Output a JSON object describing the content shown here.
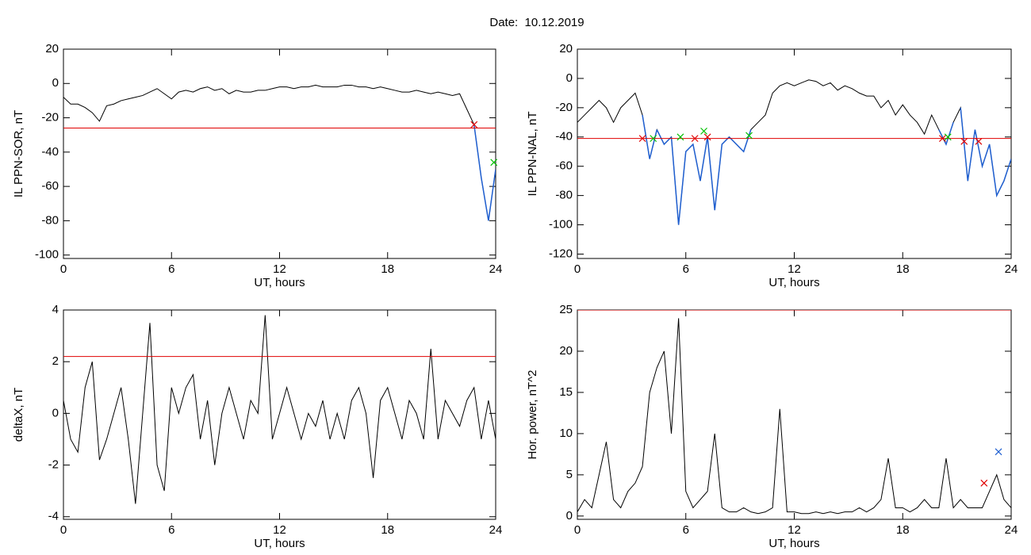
{
  "title": "Date:  10.12.2019",
  "chart_data": [
    {
      "type": "line",
      "ylabel": "IL PPN-SOR, nT",
      "xlabel": "UT, hours",
      "xlim": [
        0,
        24
      ],
      "xticks": [
        0,
        6,
        12,
        18,
        24
      ],
      "ylim": [
        -102,
        20
      ],
      "yticks": [
        -100,
        -80,
        -60,
        -40,
        -20,
        0,
        20
      ],
      "color": "#000000",
      "below_color": "#1f5fd0",
      "threshold": -26,
      "threshold_color": "#e00000",
      "x": [
        0,
        0.4,
        0.8,
        1.2,
        1.6,
        2,
        2.4,
        2.8,
        3.2,
        3.6,
        4,
        4.4,
        4.8,
        5.2,
        5.6,
        6,
        6.4,
        6.8,
        7.2,
        7.6,
        8,
        8.4,
        8.8,
        9.2,
        9.6,
        10,
        10.4,
        10.8,
        11.2,
        11.6,
        12,
        12.4,
        12.8,
        13.2,
        13.6,
        14,
        14.4,
        14.8,
        15.2,
        15.6,
        16,
        16.4,
        16.8,
        17.2,
        17.6,
        18,
        18.4,
        18.8,
        19.2,
        19.6,
        20,
        20.4,
        20.8,
        21.2,
        21.6,
        22,
        22.4,
        22.8,
        23.2,
        23.6,
        24
      ],
      "values": [
        -8,
        -12,
        -12,
        -14,
        -17,
        -22,
        -13,
        -12,
        -10,
        -9,
        -8,
        -7,
        -5,
        -3,
        -6,
        -9,
        -5,
        -4,
        -5,
        -3,
        -2,
        -4,
        -3,
        -6,
        -4,
        -5,
        -5,
        -4,
        -4,
        -3,
        -2,
        -2,
        -3,
        -2,
        -2,
        -1,
        -2,
        -2,
        -2,
        -1,
        -1,
        -2,
        -2,
        -3,
        -2,
        -3,
        -4,
        -5,
        -5,
        -4,
        -5,
        -6,
        -5,
        -6,
        -7,
        -6,
        -15,
        -24,
        -55,
        -80,
        -50
      ],
      "markers": [
        {
          "x": 22.8,
          "y": -24,
          "color": "#e00000"
        },
        {
          "x": 23.9,
          "y": -46,
          "color": "#00c000"
        }
      ]
    },
    {
      "type": "line",
      "ylabel": "IL PPN-NAL, nT",
      "xlabel": "UT, hours",
      "xlim": [
        0,
        24
      ],
      "xticks": [
        0,
        6,
        12,
        18,
        24
      ],
      "ylim": [
        -123,
        20
      ],
      "yticks": [
        -120,
        -100,
        -80,
        -60,
        -40,
        -20,
        0,
        20
      ],
      "color": "#000000",
      "below_color": "#1f5fd0",
      "threshold": -41,
      "threshold_color": "#e00000",
      "x": [
        0,
        0.4,
        0.8,
        1.2,
        1.6,
        2,
        2.4,
        2.8,
        3.2,
        3.6,
        4,
        4.4,
        4.8,
        5.2,
        5.6,
        6,
        6.4,
        6.8,
        7.2,
        7.6,
        8,
        8.4,
        8.8,
        9.2,
        9.6,
        10,
        10.4,
        10.8,
        11.2,
        11.6,
        12,
        12.4,
        12.8,
        13.2,
        13.6,
        14,
        14.4,
        14.8,
        15.2,
        15.6,
        16,
        16.4,
        16.8,
        17.2,
        17.6,
        18,
        18.4,
        18.8,
        19.2,
        19.6,
        20,
        20.4,
        20.8,
        21.2,
        21.6,
        22,
        22.4,
        22.8,
        23.2,
        23.6,
        24
      ],
      "values": [
        -30,
        -25,
        -20,
        -15,
        -20,
        -30,
        -20,
        -15,
        -10,
        -25,
        -55,
        -35,
        -45,
        -40,
        -100,
        -50,
        -45,
        -70,
        -40,
        -90,
        -45,
        -40,
        -45,
        -50,
        -35,
        -30,
        -25,
        -10,
        -5,
        -3,
        -5,
        -3,
        -1,
        -2,
        -5,
        -3,
        -8,
        -5,
        -7,
        -10,
        -12,
        -12,
        -20,
        -15,
        -25,
        -18,
        -25,
        -30,
        -38,
        -25,
        -35,
        -45,
        -30,
        -20,
        -70,
        -35,
        -60,
        -45,
        -80,
        -70,
        -55
      ],
      "markers": [
        {
          "x": 3.6,
          "y": -41,
          "color": "#e00000"
        },
        {
          "x": 6.5,
          "y": -41,
          "color": "#e00000"
        },
        {
          "x": 7.2,
          "y": -40,
          "color": "#e00000"
        },
        {
          "x": 20.2,
          "y": -41,
          "color": "#e00000"
        },
        {
          "x": 21.4,
          "y": -43,
          "color": "#e00000"
        },
        {
          "x": 22.2,
          "y": -43,
          "color": "#e00000"
        },
        {
          "x": 4.2,
          "y": -41,
          "color": "#00c000"
        },
        {
          "x": 5.7,
          "y": -40,
          "color": "#00c000"
        },
        {
          "x": 7.0,
          "y": -36,
          "color": "#00c000"
        },
        {
          "x": 9.5,
          "y": -39,
          "color": "#00c000"
        },
        {
          "x": 20.5,
          "y": -40,
          "color": "#00c000"
        }
      ]
    },
    {
      "type": "line",
      "ylabel": "deltaX, nT",
      "xlabel": "UT, hours",
      "xlim": [
        0,
        24
      ],
      "xticks": [
        0,
        6,
        12,
        18,
        24
      ],
      "ylim": [
        -4.1,
        4
      ],
      "yticks": [
        -4,
        -2,
        0,
        2,
        4
      ],
      "color": "#000000",
      "threshold": 2.2,
      "threshold_color": "#e00000",
      "x": [
        0,
        0.4,
        0.8,
        1.2,
        1.6,
        2,
        2.4,
        2.8,
        3.2,
        3.6,
        4,
        4.4,
        4.8,
        5.2,
        5.6,
        6,
        6.4,
        6.8,
        7.2,
        7.6,
        8,
        8.4,
        8.8,
        9.2,
        9.6,
        10,
        10.4,
        10.8,
        11.2,
        11.6,
        12,
        12.4,
        12.8,
        13.2,
        13.6,
        14,
        14.4,
        14.8,
        15.2,
        15.6,
        16,
        16.4,
        16.8,
        17.2,
        17.6,
        18,
        18.4,
        18.8,
        19.2,
        19.6,
        20,
        20.4,
        20.8,
        21.2,
        21.6,
        22,
        22.4,
        22.8,
        23.2,
        23.6,
        24
      ],
      "values": [
        0.5,
        -1,
        -1.5,
        1,
        2,
        -1.8,
        -1,
        0,
        1,
        -1,
        -3.5,
        0,
        3.5,
        -2,
        -3,
        1,
        0,
        1,
        1.5,
        -1,
        0.5,
        -2,
        0,
        1,
        0,
        -1,
        0.5,
        0,
        3.8,
        -1,
        0,
        1,
        0,
        -1,
        0,
        -0.5,
        0.5,
        -1,
        0,
        -1,
        0.5,
        1,
        0,
        -2.5,
        0.5,
        1,
        0,
        -1,
        0.5,
        0,
        -1,
        2.5,
        -1,
        0.5,
        0,
        -0.5,
        0.5,
        1,
        -1,
        0.5,
        -1
      ],
      "markers": []
    },
    {
      "type": "line",
      "ylabel": "Hor. power, nT^2",
      "xlabel": "UT, hours",
      "xlim": [
        0,
        24
      ],
      "xticks": [
        0,
        6,
        12,
        18,
        24
      ],
      "ylim": [
        -0.4,
        25
      ],
      "yticks": [
        0,
        5,
        10,
        15,
        20,
        25
      ],
      "color": "#000000",
      "threshold": 25,
      "threshold_color": "#e00000",
      "x": [
        0,
        0.4,
        0.8,
        1.2,
        1.6,
        2,
        2.4,
        2.8,
        3.2,
        3.6,
        4,
        4.4,
        4.8,
        5.2,
        5.6,
        6,
        6.4,
        6.8,
        7.2,
        7.6,
        8,
        8.4,
        8.8,
        9.2,
        9.6,
        10,
        10.4,
        10.8,
        11.2,
        11.6,
        12,
        12.4,
        12.8,
        13.2,
        13.6,
        14,
        14.4,
        14.8,
        15.2,
        15.6,
        16,
        16.4,
        16.8,
        17.2,
        17.6,
        18,
        18.4,
        18.8,
        19.2,
        19.6,
        20,
        20.4,
        20.8,
        21.2,
        21.6,
        22,
        22.4,
        22.8,
        23.2,
        23.6,
        24
      ],
      "values": [
        0.5,
        2,
        1,
        5,
        9,
        2,
        1,
        3,
        4,
        6,
        15,
        18,
        20,
        10,
        24,
        3,
        1,
        2,
        3,
        10,
        1,
        0.5,
        0.5,
        1,
        0.5,
        0.3,
        0.5,
        1,
        13,
        0.5,
        0.5,
        0.3,
        0.3,
        0.5,
        0.3,
        0.5,
        0.3,
        0.5,
        0.5,
        1,
        0.5,
        1,
        2,
        7,
        1,
        1,
        0.5,
        1,
        2,
        1,
        1,
        7,
        1,
        2,
        1,
        1,
        1,
        3,
        5,
        2,
        1
      ],
      "markers": [
        {
          "x": 22.5,
          "y": 4,
          "color": "#e00000"
        },
        {
          "x": 23.3,
          "y": 7.8,
          "color": "#1f5fd0"
        }
      ]
    }
  ]
}
